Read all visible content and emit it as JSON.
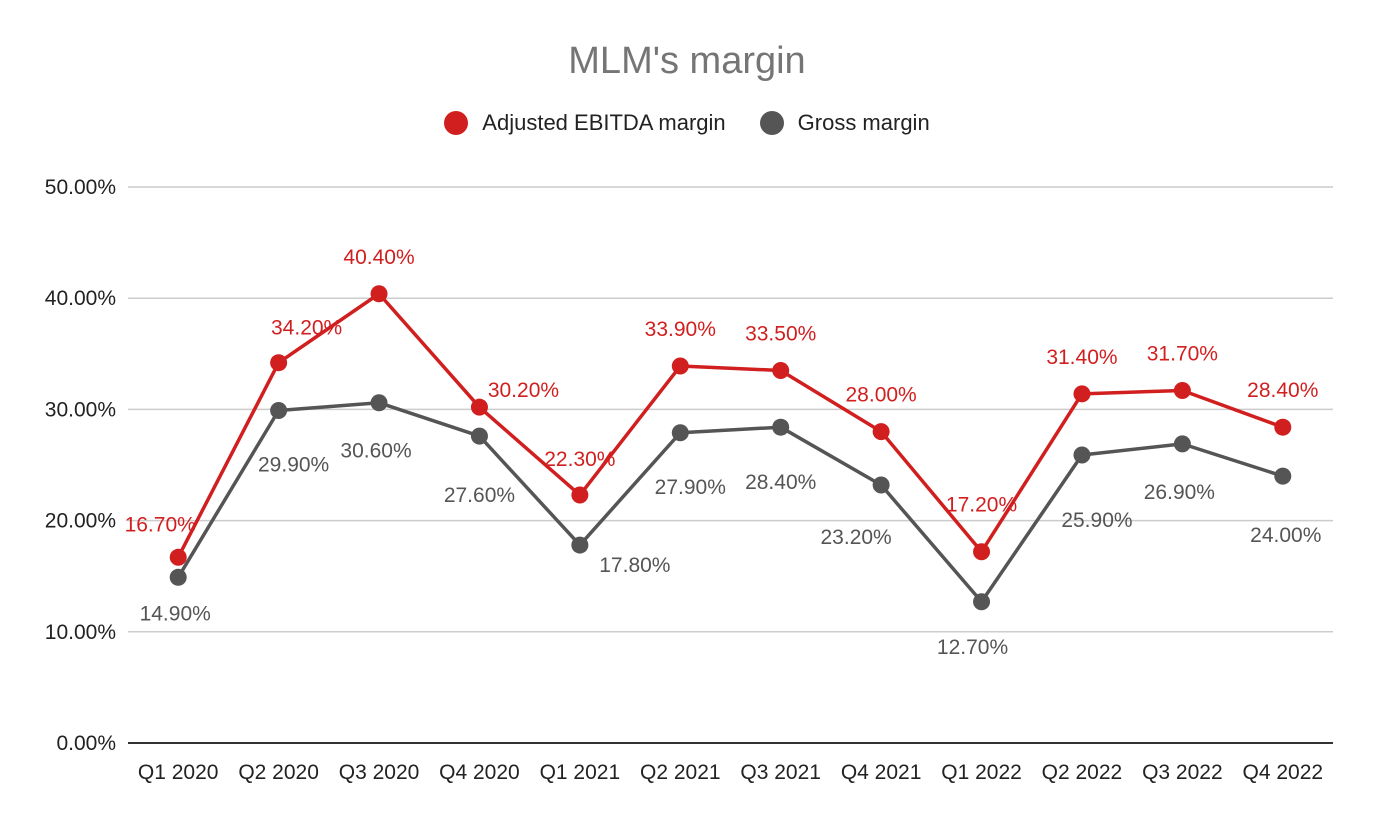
{
  "chart_data": {
    "type": "line",
    "title": "MLM's margin",
    "categories": [
      "Q1 2020",
      "Q2 2020",
      "Q3 2020",
      "Q4 2020",
      "Q1 2021",
      "Q2 2021",
      "Q3 2021",
      "Q4 2021",
      "Q1 2022",
      "Q2 2022",
      "Q3 2022",
      "Q4 2022"
    ],
    "series": [
      {
        "name": "Adjusted EBITDA margin",
        "color": "#d11f1f",
        "values": [
          16.7,
          34.2,
          40.4,
          30.2,
          22.3,
          33.9,
          33.5,
          28.0,
          17.2,
          31.4,
          31.7,
          28.4
        ],
        "labels": [
          "16.70%",
          "34.20%",
          "40.40%",
          "30.20%",
          "22.30%",
          "33.90%",
          "33.50%",
          "28.00%",
          "17.20%",
          "31.40%",
          "31.70%",
          "28.40%"
        ]
      },
      {
        "name": "Gross margin",
        "color": "#555555",
        "values": [
          14.9,
          29.9,
          30.6,
          27.6,
          17.8,
          27.9,
          28.4,
          23.2,
          12.7,
          25.9,
          26.9,
          24.0
        ],
        "labels": [
          "14.90%",
          "29.90%",
          "30.60%",
          "27.60%",
          "17.80%",
          "27.90%",
          "28.40%",
          "23.20%",
          "12.70%",
          "25.90%",
          "26.90%",
          "24.00%"
        ]
      }
    ],
    "y_ticks": [
      "0.00%",
      "10.00%",
      "20.00%",
      "30.00%",
      "40.00%",
      "50.00%"
    ],
    "ylim": [
      0,
      50
    ],
    "grid": true,
    "legend_position": "top"
  }
}
